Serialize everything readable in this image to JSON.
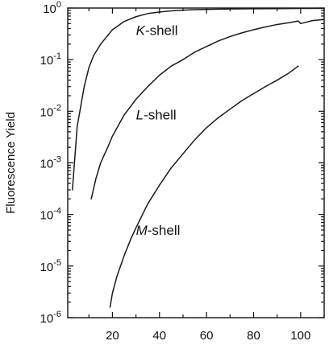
{
  "chart_data": {
    "type": "line",
    "title": "",
    "xlabel": "",
    "ylabel": "Fluorescence Yield",
    "xlim": [
      1,
      110
    ],
    "ylim": [
      1e-06,
      1
    ],
    "yscale": "log",
    "grid": false,
    "legend": "none",
    "x_ticks": [
      20,
      40,
      60,
      80,
      100
    ],
    "x_tick_labels": [
      "20",
      "40",
      "60",
      "80",
      "100"
    ],
    "y_ticks": [
      1,
      0.1,
      0.01,
      0.001,
      0.0001,
      1e-05,
      1e-06
    ],
    "y_tick_labels": [
      {
        "base": "10",
        "exp": "0"
      },
      {
        "base": "10",
        "exp": "-1"
      },
      {
        "base": "10",
        "exp": "-2"
      },
      {
        "base": "10",
        "exp": "-3"
      },
      {
        "base": "10",
        "exp": "-4"
      },
      {
        "base": "10",
        "exp": "-5"
      },
      {
        "base": "10",
        "exp": "-6"
      }
    ],
    "series": [
      {
        "label": {
          "italic": "K",
          "rest": "-shell"
        },
        "label_at": [
          30,
          0.3
        ],
        "x": [
          3,
          5,
          8,
          10,
          12,
          15,
          20,
          25,
          30,
          35,
          40,
          45,
          50,
          55,
          60,
          70,
          80,
          90,
          100,
          110
        ],
        "y": [
          0.0003,
          0.005,
          0.03,
          0.07,
          0.12,
          0.2,
          0.38,
          0.55,
          0.68,
          0.78,
          0.84,
          0.88,
          0.91,
          0.93,
          0.94,
          0.96,
          0.97,
          0.975,
          0.98,
          0.985
        ]
      },
      {
        "label": {
          "italic": "L",
          "rest": "-shell"
        },
        "label_at": [
          30,
          0.007
        ],
        "x": [
          11,
          13,
          15,
          18,
          20,
          25,
          30,
          35,
          40,
          45,
          50,
          55,
          60,
          65,
          70,
          75,
          80,
          85,
          90,
          95,
          99,
          100,
          105,
          110
        ],
        "y": [
          0.0002,
          0.0005,
          0.001,
          0.002,
          0.0033,
          0.0085,
          0.017,
          0.03,
          0.05,
          0.075,
          0.1,
          0.14,
          0.18,
          0.23,
          0.28,
          0.33,
          0.38,
          0.43,
          0.48,
          0.52,
          0.56,
          0.5,
          0.57,
          0.6
        ]
      },
      {
        "label": {
          "italic": "M",
          "rest": "-shell"
        },
        "label_at": [
          30,
          4e-05
        ],
        "x": [
          19,
          20,
          22,
          25,
          28,
          30,
          35,
          40,
          45,
          50,
          55,
          60,
          65,
          70,
          75,
          80,
          85,
          90,
          95,
          99
        ],
        "y": [
          1.6e-06,
          3e-06,
          6.5e-06,
          1.6e-05,
          3.5e-05,
          5.5e-05,
          0.00016,
          0.00037,
          0.0008,
          0.0015,
          0.0028,
          0.0048,
          0.0075,
          0.011,
          0.016,
          0.022,
          0.03,
          0.04,
          0.055,
          0.075
        ]
      }
    ]
  }
}
